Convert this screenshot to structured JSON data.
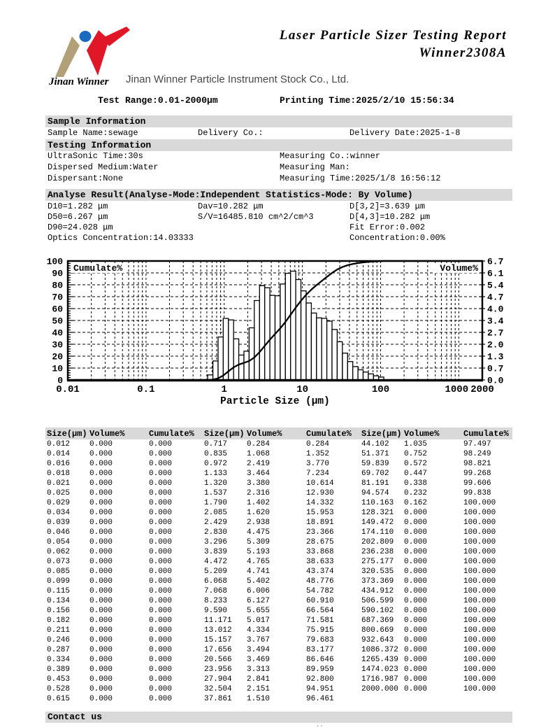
{
  "header": {
    "title_line1": "Laser Particle Sizer Testing Report",
    "title_line2": "Winner2308A",
    "logo_caption": "Jinan Winner",
    "logo_colors": {
      "blue": "#1a6bbf",
      "red": "#e01727",
      "tan": "#b2a078"
    },
    "company": "Jinan Winner Particle Instrument Stock Co., Ltd.",
    "test_range": "Test Range:0.01-2000μm",
    "printing_time": "Printing Time:2025/2/10 15:56:34"
  },
  "sample_info": {
    "heading": "Sample Information",
    "sample_name": "Sample Name:sewage",
    "delivery_co": "Delivery Co.:",
    "delivery_date": "Delivery Date:2025-1-8"
  },
  "testing_info": {
    "heading": "Testing Information",
    "rows": [
      {
        "left": "UltraSonic Time:30s",
        "right": "Measuring Co.:winner"
      },
      {
        "left": "Dispersed Medium:Water",
        "right": "Measuring Man:"
      },
      {
        "left": "Dispersant:None",
        "right": "Measuring Time:2025/1/8 16:56:12"
      }
    ]
  },
  "analyse_result": {
    "heading": "Analyse Result(Analyse-Mode:Independent  Statistics-Mode: By Volume)",
    "rows": [
      {
        "c1": "D10=1.282 μm",
        "c2": "Dav=10.282 μm",
        "c3": "D[3,2]=3.639 μm"
      },
      {
        "c1": "D50=6.267 μm",
        "c2": "S/V=16485.810 cm^2/cm^3",
        "c3": "D[4,3]=10.282 μm"
      },
      {
        "c1": "D90=24.028 μm",
        "c2": "",
        "c3": "Fit Error:0.002"
      },
      {
        "c1": "Optics Concentration:14.03333",
        "c2": "",
        "c3": "Concentration:0.00%"
      }
    ]
  },
  "chart_data": {
    "type": "bar",
    "subtype": "log-histogram with cumulative line overlay",
    "x_axis": {
      "label": "Particle Size (μm)",
      "scale": "log",
      "min": 0.01,
      "max": 2000,
      "tick_values": [
        0.01,
        0.1,
        1,
        10,
        100,
        1000,
        2000
      ],
      "tick_labels": [
        "0.01",
        "0.1",
        "1",
        "10",
        "100",
        "1000",
        "2000"
      ]
    },
    "left_axis": {
      "label": "Cumulate%",
      "min": 0,
      "max": 100,
      "tick_step": 10
    },
    "right_axis": {
      "label": "Volume%",
      "min": 0,
      "max": 6.7,
      "tick_labels": [
        "0.0",
        "0.7",
        "1.3",
        "2.0",
        "2.7",
        "3.4",
        "4.0",
        "4.7",
        "5.4",
        "6.1",
        "6.7"
      ]
    },
    "grid": true,
    "sizes": [
      0.012,
      0.014,
      0.016,
      0.018,
      0.021,
      0.025,
      0.029,
      0.034,
      0.039,
      0.046,
      0.054,
      0.062,
      0.073,
      0.085,
      0.099,
      0.115,
      0.134,
      0.156,
      0.182,
      0.211,
      0.246,
      0.287,
      0.334,
      0.389,
      0.453,
      0.528,
      0.615,
      0.717,
      0.835,
      0.972,
      1.133,
      1.32,
      1.537,
      1.79,
      2.085,
      2.429,
      2.83,
      3.296,
      3.839,
      4.472,
      5.209,
      6.068,
      7.068,
      8.233,
      9.59,
      11.171,
      13.012,
      15.157,
      17.656,
      20.566,
      23.956,
      27.904,
      32.504,
      37.861,
      44.102,
      51.371,
      59.839,
      69.702,
      81.191,
      94.574,
      110.163,
      128.321,
      149.472,
      174.11,
      202.809,
      236.238,
      275.177,
      320.535,
      373.369,
      434.912,
      506.599,
      590.102,
      687.369,
      800.669,
      932.643,
      1086.372,
      1265.439,
      1474.023,
      1716.987,
      2000
    ],
    "volume_percent": [
      0,
      0,
      0,
      0,
      0,
      0,
      0,
      0,
      0,
      0,
      0,
      0,
      0,
      0,
      0,
      0,
      0,
      0,
      0,
      0,
      0,
      0,
      0,
      0,
      0,
      0,
      0,
      0.284,
      1.068,
      2.419,
      3.464,
      3.38,
      2.316,
      1.402,
      1.62,
      2.938,
      4.475,
      5.309,
      5.193,
      4.765,
      4.741,
      5.402,
      6.006,
      6.127,
      5.655,
      5.017,
      4.334,
      3.767,
      3.494,
      3.469,
      3.313,
      2.841,
      2.151,
      1.51,
      1.035,
      0.752,
      0.572,
      0.447,
      0.338,
      0.232,
      0.162,
      0,
      0,
      0,
      0,
      0,
      0,
      0,
      0,
      0,
      0,
      0,
      0,
      0,
      0,
      0,
      0,
      0,
      0,
      0
    ],
    "cumulate_percent": [
      0,
      0,
      0,
      0,
      0,
      0,
      0,
      0,
      0,
      0,
      0,
      0,
      0,
      0,
      0,
      0,
      0,
      0,
      0,
      0,
      0,
      0,
      0,
      0,
      0,
      0,
      0,
      0.284,
      1.352,
      3.77,
      7.234,
      10.614,
      12.93,
      14.332,
      15.953,
      18.891,
      23.366,
      28.675,
      33.868,
      38.633,
      43.374,
      48.776,
      54.782,
      60.91,
      66.564,
      71.581,
      75.915,
      79.683,
      83.177,
      86.646,
      89.959,
      92.8,
      94.951,
      96.461,
      97.497,
      98.249,
      98.821,
      99.268,
      99.606,
      99.838,
      100,
      100,
      100,
      100,
      100,
      100,
      100,
      100,
      100,
      100,
      100,
      100,
      100,
      100,
      100,
      100,
      100,
      100,
      100,
      100
    ]
  },
  "table": {
    "headers": [
      "Size(μm)",
      "Volume%",
      "Cumulate%"
    ],
    "groups": 3,
    "rows_per_group": 27,
    "decimals": 3
  },
  "footer": {
    "heading": "Contact us",
    "clipped_text": ".."
  }
}
